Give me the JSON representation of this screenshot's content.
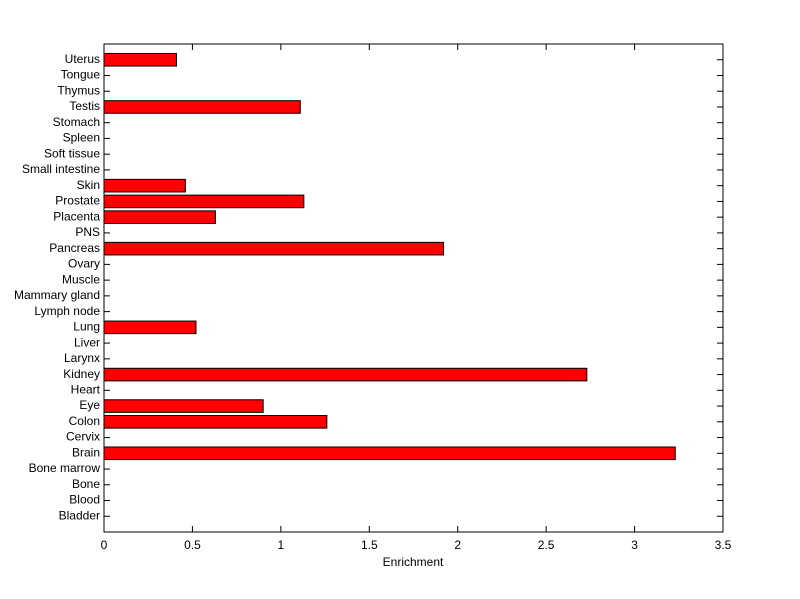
{
  "chart_data": {
    "type": "barh",
    "xlabel": "Enrichment",
    "categories": [
      "Bladder",
      "Blood",
      "Bone",
      "Bone marrow",
      "Brain",
      "Cervix",
      "Colon",
      "Eye",
      "Heart",
      "Kidney",
      "Larynx",
      "Liver",
      "Lung",
      "Lymph node",
      "Mammary gland",
      "Muscle",
      "Ovary",
      "Pancreas",
      "PNS",
      "Placenta",
      "Prostate",
      "Skin",
      "Small intestine",
      "Soft tissue",
      "Spleen",
      "Stomach",
      "Testis",
      "Thymus",
      "Tongue",
      "Uterus"
    ],
    "values": [
      0,
      0,
      0,
      0,
      3.23,
      0,
      1.26,
      0.9,
      0,
      2.73,
      0,
      0,
      0.52,
      0,
      0,
      0,
      0,
      1.92,
      0,
      0.63,
      1.13,
      0.46,
      0,
      0,
      0,
      0,
      1.11,
      0,
      0,
      0.41
    ],
    "color": "#ff0000",
    "xlim": [
      0,
      3.5
    ],
    "xticks": [
      0,
      0.5,
      1,
      1.5,
      2,
      2.5,
      3,
      3.5
    ]
  }
}
